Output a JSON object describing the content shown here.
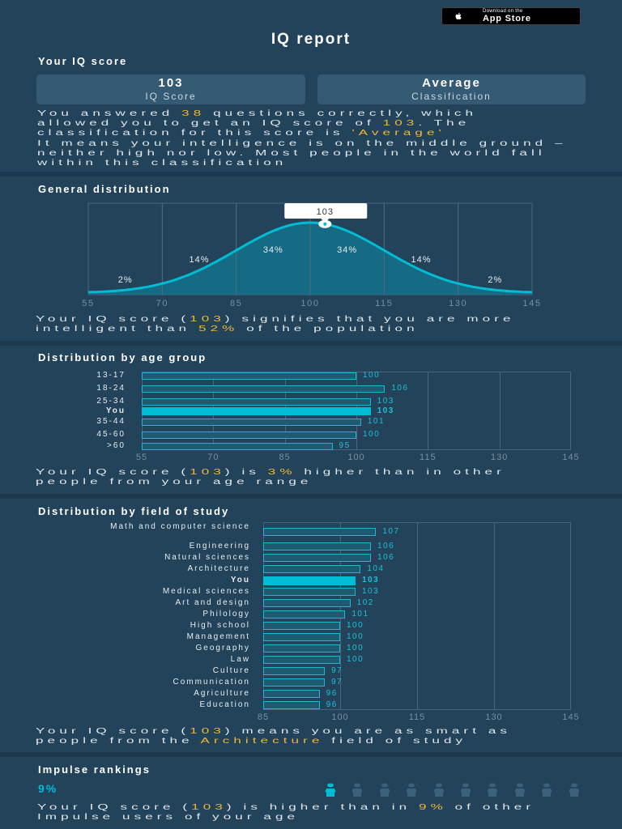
{
  "badge": {
    "small": "Download on the",
    "big": "App Store",
    "icon": "apple-icon"
  },
  "title": "IQ report",
  "score_section": {
    "heading": "Your IQ score",
    "cards": [
      {
        "value": "103",
        "label": "IQ Score"
      },
      {
        "value": "Average",
        "label": "Classification"
      }
    ],
    "para1": [
      "You answered ",
      "38",
      " questions correctly, which allowed you to get an IQ score of ",
      "103",
      ". The classification for this score is ",
      "'Average'"
    ],
    "para2": "It means your intelligence is on the middle ground – neither high nor low. Most people in the world fall within this classification"
  },
  "general": {
    "heading": "General distribution",
    "marker_label": "103",
    "summary": [
      "Your IQ score (",
      "103",
      ") signifies that you are more intelligent than ",
      "52%",
      " of the population"
    ]
  },
  "age": {
    "heading": "Distribution by age group",
    "summary": [
      "Your IQ score (",
      "103",
      ") is ",
      "3%",
      " higher than in other people from your age range"
    ]
  },
  "field": {
    "heading": "Distribution by field of study",
    "summary": [
      "Your IQ score (",
      "103",
      ") means you are as smart as people from the ",
      "Architecture",
      " field of study"
    ]
  },
  "impulse": {
    "heading": "Impulse rankings",
    "percent": "9%",
    "filled_figures": 1,
    "total_figures": 10,
    "summary": [
      "Your IQ score (",
      "103",
      ") is higher than in ",
      "9%",
      " of other Impulse users of your age"
    ]
  },
  "colors": {
    "background": "#22435a",
    "card": "#355a74",
    "accent": "#00bcd4",
    "highlight": "#f2b632"
  },
  "chart_data": [
    {
      "type": "area",
      "title": "General distribution",
      "distribution": "normal",
      "mean": 100,
      "sd": 15,
      "xlim": [
        55,
        145
      ],
      "x_ticks": [
        "55",
        "70",
        "85",
        "100",
        "115",
        "130",
        "145"
      ],
      "band_labels": [
        "2%",
        "14%",
        "34%",
        "34%",
        "14%",
        "2%"
      ],
      "marker": 103,
      "grid": true
    },
    {
      "type": "bar",
      "orientation": "horizontal",
      "title": "Distribution by age group",
      "xlim": [
        55,
        145
      ],
      "x_ticks": [
        "55",
        "70",
        "85",
        "100",
        "115",
        "130",
        "145"
      ],
      "categories": [
        "13-17",
        "18-24",
        "25-34",
        "You",
        "35-44",
        "45-60",
        ">60"
      ],
      "values": [
        100,
        106,
        103,
        103,
        101,
        100,
        95
      ],
      "highlight": "You"
    },
    {
      "type": "bar",
      "orientation": "horizontal",
      "title": "Distribution by field of study",
      "xlim": [
        85,
        145
      ],
      "x_ticks": [
        "85",
        "100",
        "115",
        "130",
        "145"
      ],
      "categories": [
        "Math and computer science",
        "Engineering",
        "Natural sciences",
        "Architecture",
        "You",
        "Medical sciences",
        "Art and design",
        "Philology",
        "High school",
        "Management",
        "Geography",
        "Law",
        "Culture",
        "Communication",
        "Agriculture",
        "Education"
      ],
      "values": [
        107,
        106,
        106,
        104,
        103,
        103,
        102,
        101,
        100,
        100,
        100,
        100,
        97,
        97,
        96,
        96
      ],
      "highlight": "You"
    }
  ]
}
